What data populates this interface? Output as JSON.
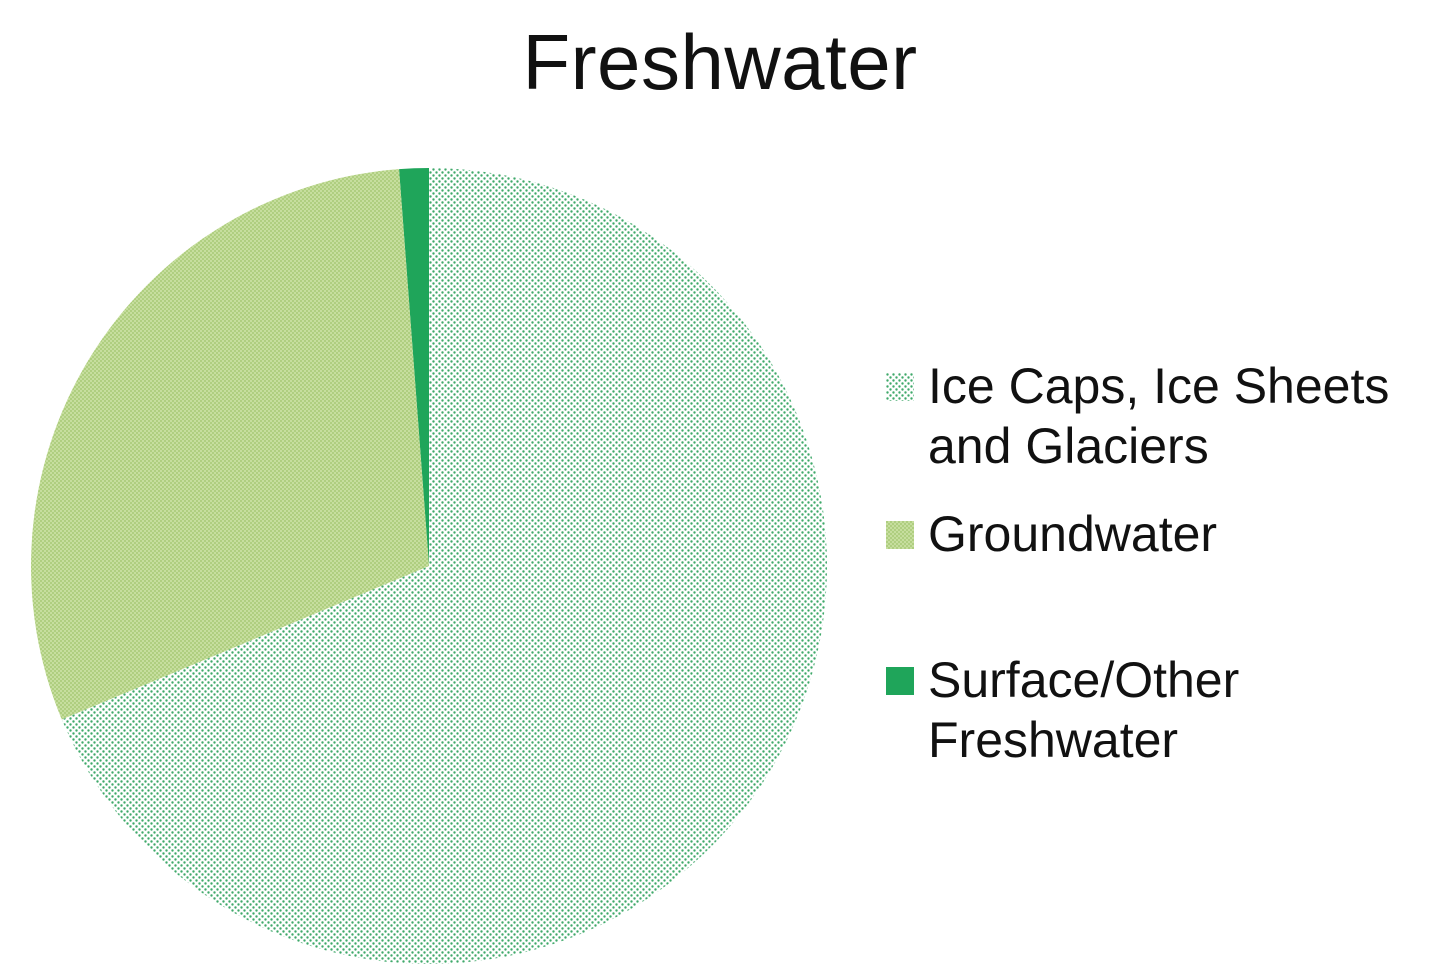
{
  "chart_data": {
    "type": "pie",
    "title": "Freshwater",
    "slices": [
      {
        "label": "Ice Caps, Ice Sheets\nand Glaciers",
        "value": 68.7,
        "color": "#c9e6c9",
        "pattern": "dotted"
      },
      {
        "label": "Groundwater",
        "value": 30.1,
        "color": "#c4dc9c",
        "pattern": "dotted"
      },
      {
        "label": "Surface/Other\nFreshwater",
        "value": 1.2,
        "color": "#1fa55a",
        "pattern": "solid"
      }
    ],
    "legend_position": "right"
  }
}
